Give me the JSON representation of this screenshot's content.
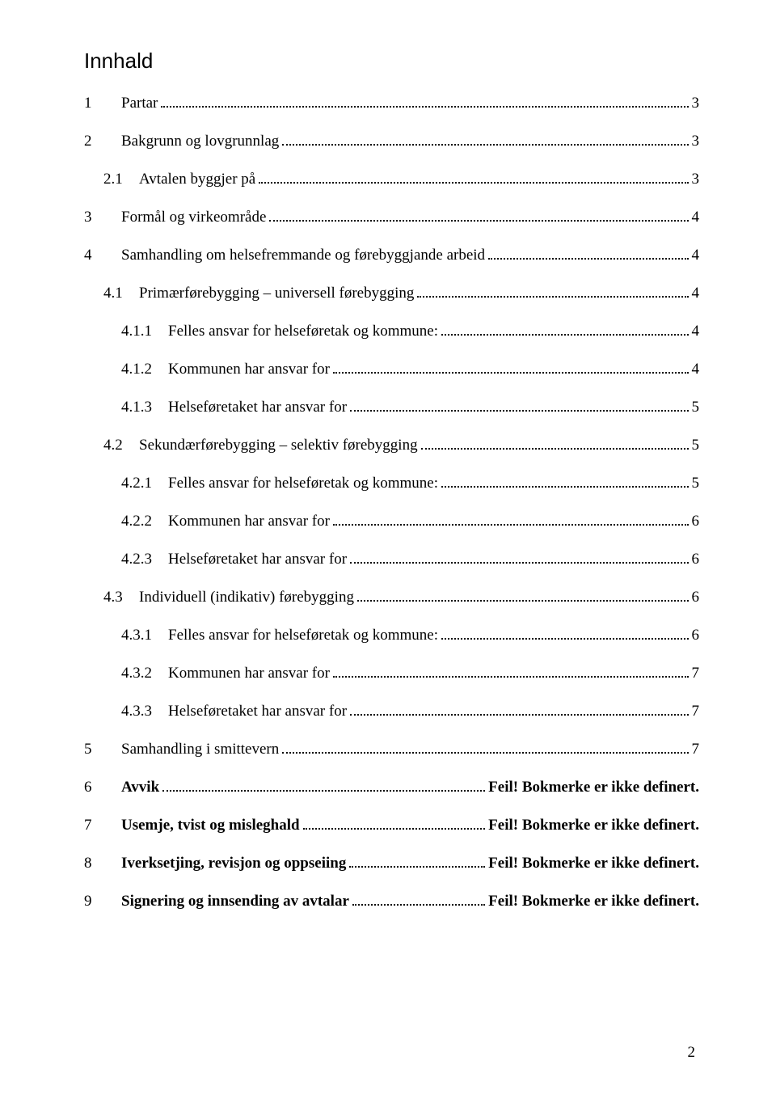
{
  "title": "Innhald",
  "entries": [
    {
      "level": 1,
      "num": "1",
      "text": "Partar",
      "page": "3",
      "bold": false
    },
    {
      "level": 1,
      "num": "2",
      "text": "Bakgrunn og lovgrunnlag",
      "page": "3",
      "bold": false
    },
    {
      "level": 2,
      "num": "2.1",
      "text": "Avtalen byggjer på",
      "page": "3",
      "bold": false
    },
    {
      "level": 1,
      "num": "3",
      "text": "Formål og virkeområde",
      "page": "4",
      "bold": false
    },
    {
      "level": 1,
      "num": "4",
      "text": "Samhandling om helsefremmande og førebyggjande arbeid",
      "page": "4",
      "bold": false
    },
    {
      "level": 2,
      "num": "4.1",
      "text": "Primærførebygging – universell førebygging",
      "page": "4",
      "bold": false
    },
    {
      "level": 3,
      "num": "4.1.1",
      "text": "Felles ansvar for helseføretak og kommune:",
      "page": "4",
      "bold": false
    },
    {
      "level": 3,
      "num": "4.1.2",
      "text": "Kommunen har ansvar for",
      "page": "4",
      "bold": false
    },
    {
      "level": 3,
      "num": "4.1.3",
      "text": "Helseføretaket har ansvar for",
      "page": "5",
      "bold": false
    },
    {
      "level": 2,
      "num": "4.2",
      "text": "Sekundærførebygging – selektiv førebygging",
      "page": "5",
      "bold": false
    },
    {
      "level": 3,
      "num": "4.2.1",
      "text": "Felles ansvar for helseføretak og kommune:",
      "page": "5",
      "bold": false
    },
    {
      "level": 3,
      "num": "4.2.2",
      "text": "Kommunen har ansvar for",
      "page": "6",
      "bold": false
    },
    {
      "level": 3,
      "num": "4.2.3",
      "text": "Helseføretaket har ansvar for",
      "page": "6",
      "bold": false
    },
    {
      "level": 2,
      "num": "4.3",
      "text": "Individuell (indikativ) førebygging",
      "page": "6",
      "bold": false
    },
    {
      "level": 3,
      "num": "4.3.1",
      "text": "Felles ansvar for helseføretak og kommune:",
      "page": "6",
      "bold": false
    },
    {
      "level": 3,
      "num": "4.3.2",
      "text": "Kommunen har ansvar for",
      "page": "7",
      "bold": false
    },
    {
      "level": 3,
      "num": "4.3.3",
      "text": "Helseføretaket har ansvar for",
      "page": "7",
      "bold": false
    },
    {
      "level": 1,
      "num": "5",
      "text": "Samhandling i smittevern",
      "page": "7",
      "bold": false
    },
    {
      "level": 1,
      "num": "6",
      "text": "Avvik",
      "page": "Feil! Bokmerke er ikke definert.",
      "bold": true
    },
    {
      "level": 1,
      "num": "7",
      "text": "Usemje, tvist og misleghald",
      "page": "Feil! Bokmerke er ikke definert.",
      "bold": true
    },
    {
      "level": 1,
      "num": "8",
      "text": "Iverksetjing, revisjon og oppseiing",
      "page": "Feil! Bokmerke er ikke definert.",
      "bold": true
    },
    {
      "level": 1,
      "num": "9",
      "text": "Signering og innsending av avtalar",
      "page": "Feil! Bokmerke er ikke definert.",
      "bold": true
    }
  ],
  "pageNumber": "2"
}
